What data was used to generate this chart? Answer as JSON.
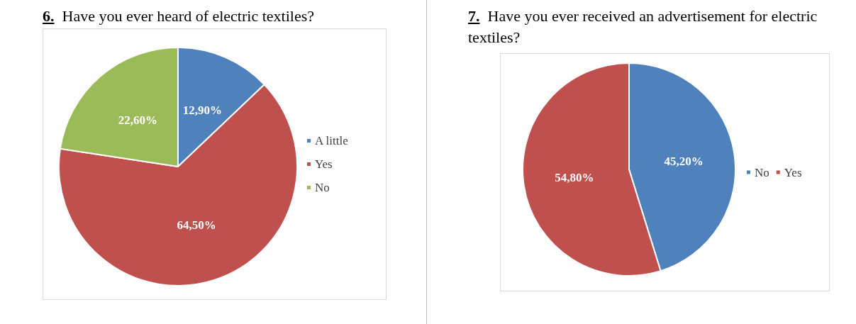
{
  "chart_data": [
    {
      "type": "pie",
      "title": "6. Have you ever heard of electric textiles?",
      "categories": [
        "A little",
        "Yes",
        "No"
      ],
      "values": [
        12.9,
        64.5,
        22.6
      ],
      "colors": [
        "#4f81bd",
        "#c0504d",
        "#9bbb59"
      ],
      "value_labels": [
        "12,90%",
        "64,50%",
        "22,60%"
      ],
      "legend": "right"
    },
    {
      "type": "pie",
      "title": "7. Have you ever received an advertisement for electric textiles?",
      "categories": [
        "No",
        "Yes"
      ],
      "values": [
        45.2,
        54.8
      ],
      "colors": [
        "#4f81bd",
        "#c0504d"
      ],
      "value_labels": [
        "45,20%",
        "54,80%"
      ],
      "legend": "right"
    }
  ]
}
